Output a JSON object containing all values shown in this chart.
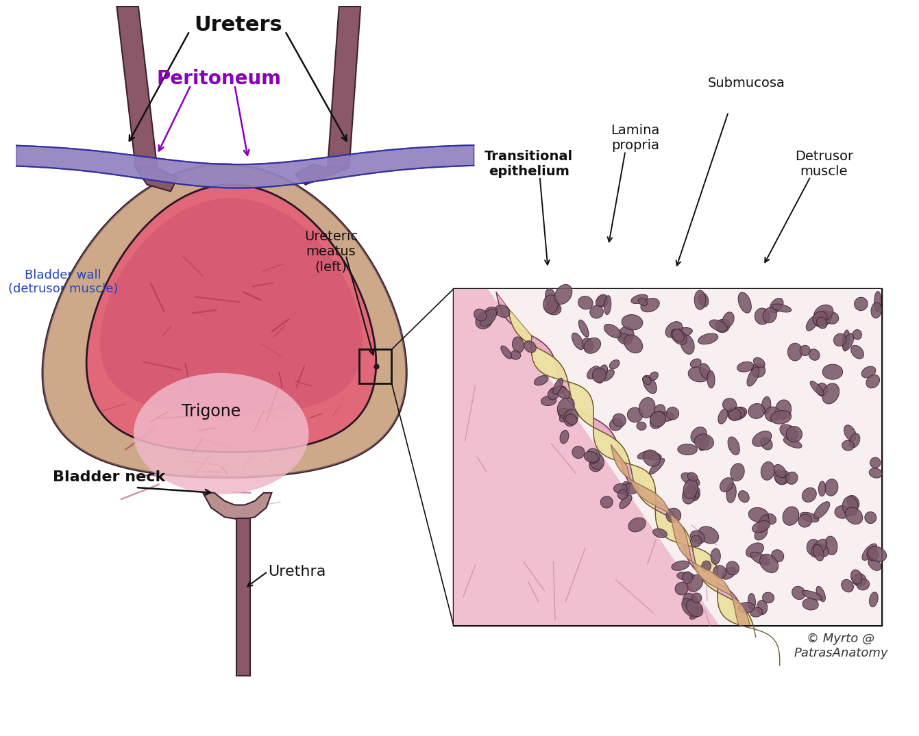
{
  "background_color": "#ffffff",
  "labels": {
    "ureters": "Ureters",
    "peritoneum": "Peritoneum",
    "bladder_wall": "Bladder wall\n(detrusor muscle)",
    "ureteric_meatus": "Ureteric\nmeatus\n(left)",
    "trigone": "Trigone",
    "bladder_neck": "Bladder neck",
    "urethra": "Urethra",
    "submucosa": "Submucosa",
    "lamina_propria": "Lamina\npropria",
    "transitional_epithelium": "Transitional\nepithelium",
    "detrusor_muscle": "Detrusor\nmuscle",
    "copyright": "© Myrto @\nPatrasAnatomy"
  },
  "colors": {
    "bladder_outer": "#c8a080",
    "bladder_outer2": "#b89070",
    "bladder_inner_pink": "#e06878",
    "bladder_inner_bright": "#d85070",
    "trigone_light": "#f0c0d0",
    "peritoneum": "#8878b8",
    "peritoneum_light": "#a898d0",
    "ureter": "#8a5868",
    "urethra_color": "#7a4858",
    "neck_color": "#c09090",
    "text_black": "#111111",
    "text_purple": "#8800bb",
    "text_blue": "#2244bb",
    "inset_bg": "#faf5fa",
    "inset_pink": "#edb0c8",
    "inset_pink_dark": "#c080a0",
    "inset_yellow": "#ede0a0",
    "inset_muscle": "#7a5868",
    "inset_outer_tan": "#d8a880"
  },
  "figsize": [
    13.41,
    10.75
  ],
  "dpi": 100
}
